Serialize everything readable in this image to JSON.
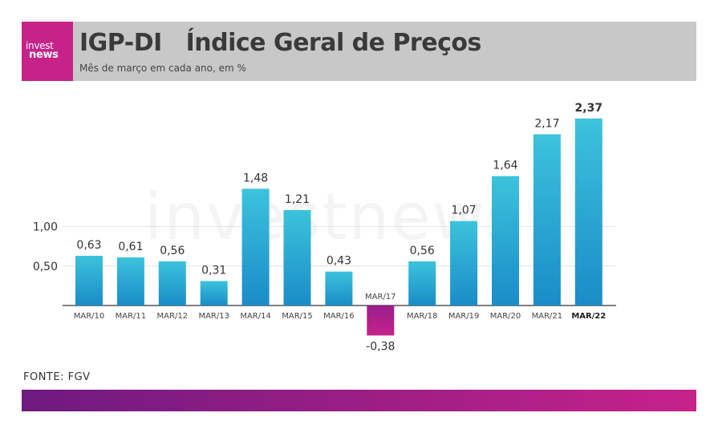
{
  "header": {
    "logo_line1": "invest",
    "logo_line2": "news",
    "title": "IGP-DI   Índice Geral de Preços",
    "subtitle": "Mês de março em cada ano, em %"
  },
  "watermark": "investnews",
  "source": "FONTE: FGV",
  "colors": {
    "positive_bar_top": "#3cc3dc",
    "positive_bar_bottom": "#1a8cc8",
    "negative_bar_top": "#9a1e8c",
    "negative_bar_bottom": "#c6228a",
    "brand": "#c6228a"
  },
  "chart_data": {
    "type": "bar",
    "title": "IGP-DI   Índice Geral de Preços",
    "subtitle": "Mês de março em cada ano, em %",
    "categories": [
      "MAR/10",
      "MAR/11",
      "MAR/12",
      "MAR/13",
      "MAR/14",
      "MAR/15",
      "MAR/16",
      "MAR/17",
      "MAR/18",
      "MAR/19",
      "MAR/20",
      "MAR/21",
      "MAR/22"
    ],
    "values": [
      0.63,
      0.61,
      0.56,
      0.31,
      1.48,
      1.21,
      0.43,
      -0.38,
      0.56,
      1.07,
      1.64,
      2.17,
      2.37
    ],
    "value_labels": [
      "0,63",
      "0,61",
      "0,56",
      "0,31",
      "1,48",
      "1,21",
      "0,43",
      "-0,38",
      "0,56",
      "1,07",
      "1,64",
      "2,17",
      "2,37"
    ],
    "highlight_index": 12,
    "yticks": [
      0.5,
      1.0
    ],
    "ytick_labels": [
      "0,50",
      "1,00"
    ],
    "ylim": [
      -0.4,
      2.5
    ],
    "grid": true,
    "legend": "none"
  }
}
